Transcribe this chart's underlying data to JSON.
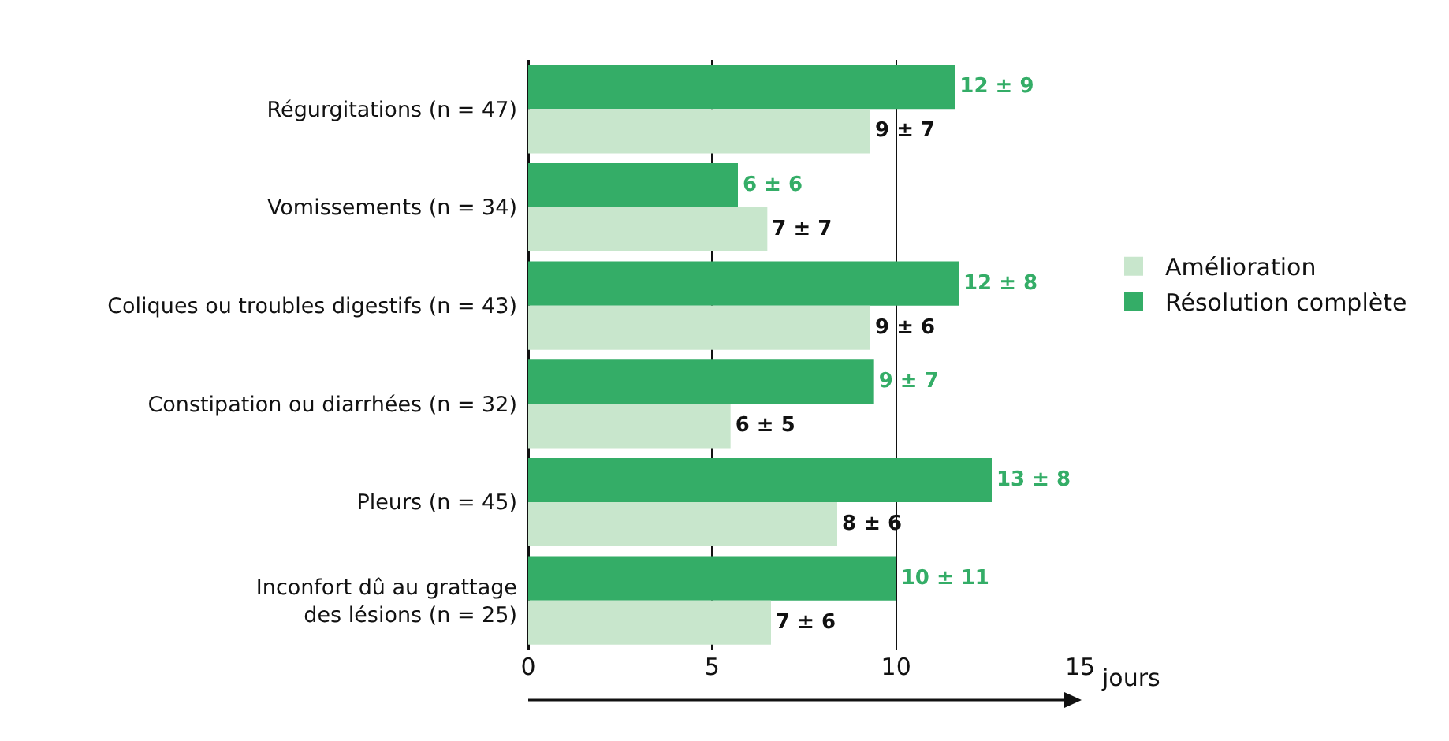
{
  "chart_data": {
    "type": "bar",
    "orientation": "horizontal",
    "categories": [
      "Régurgitations (n = 47)",
      "Vomissements (n = 34)",
      "Coliques ou troubles digestifs (n = 43)",
      "Constipation ou diarrhées (n = 32)",
      "Pleurs (n = 45)",
      "Inconfort dû au grattage des lésions (n = 25)"
    ],
    "series": [
      {
        "name": "Résolution complète",
        "color": "#34ad67",
        "values": [
          11.6,
          5.7,
          11.7,
          9.4,
          12.6,
          10.0
        ],
        "value_labels": [
          "12 ± 9",
          "6 ± 6",
          "12 ± 8",
          "9 ± 7",
          "13 ± 8",
          "10 ± 11"
        ]
      },
      {
        "name": "Amélioration",
        "color": "#c8e6cc",
        "values": [
          9.3,
          6.5,
          9.3,
          5.5,
          8.4,
          6.6
        ],
        "value_labels": [
          "9 ± 7",
          "7 ± 7",
          "9 ± 6",
          "6 ± 5",
          "8 ± 6",
          "7 ± 6"
        ]
      }
    ],
    "xlim": [
      0,
      15
    ],
    "xticks": [
      0,
      5,
      10,
      15
    ],
    "xlabel": "jours",
    "grid": "x",
    "legend": "right"
  }
}
